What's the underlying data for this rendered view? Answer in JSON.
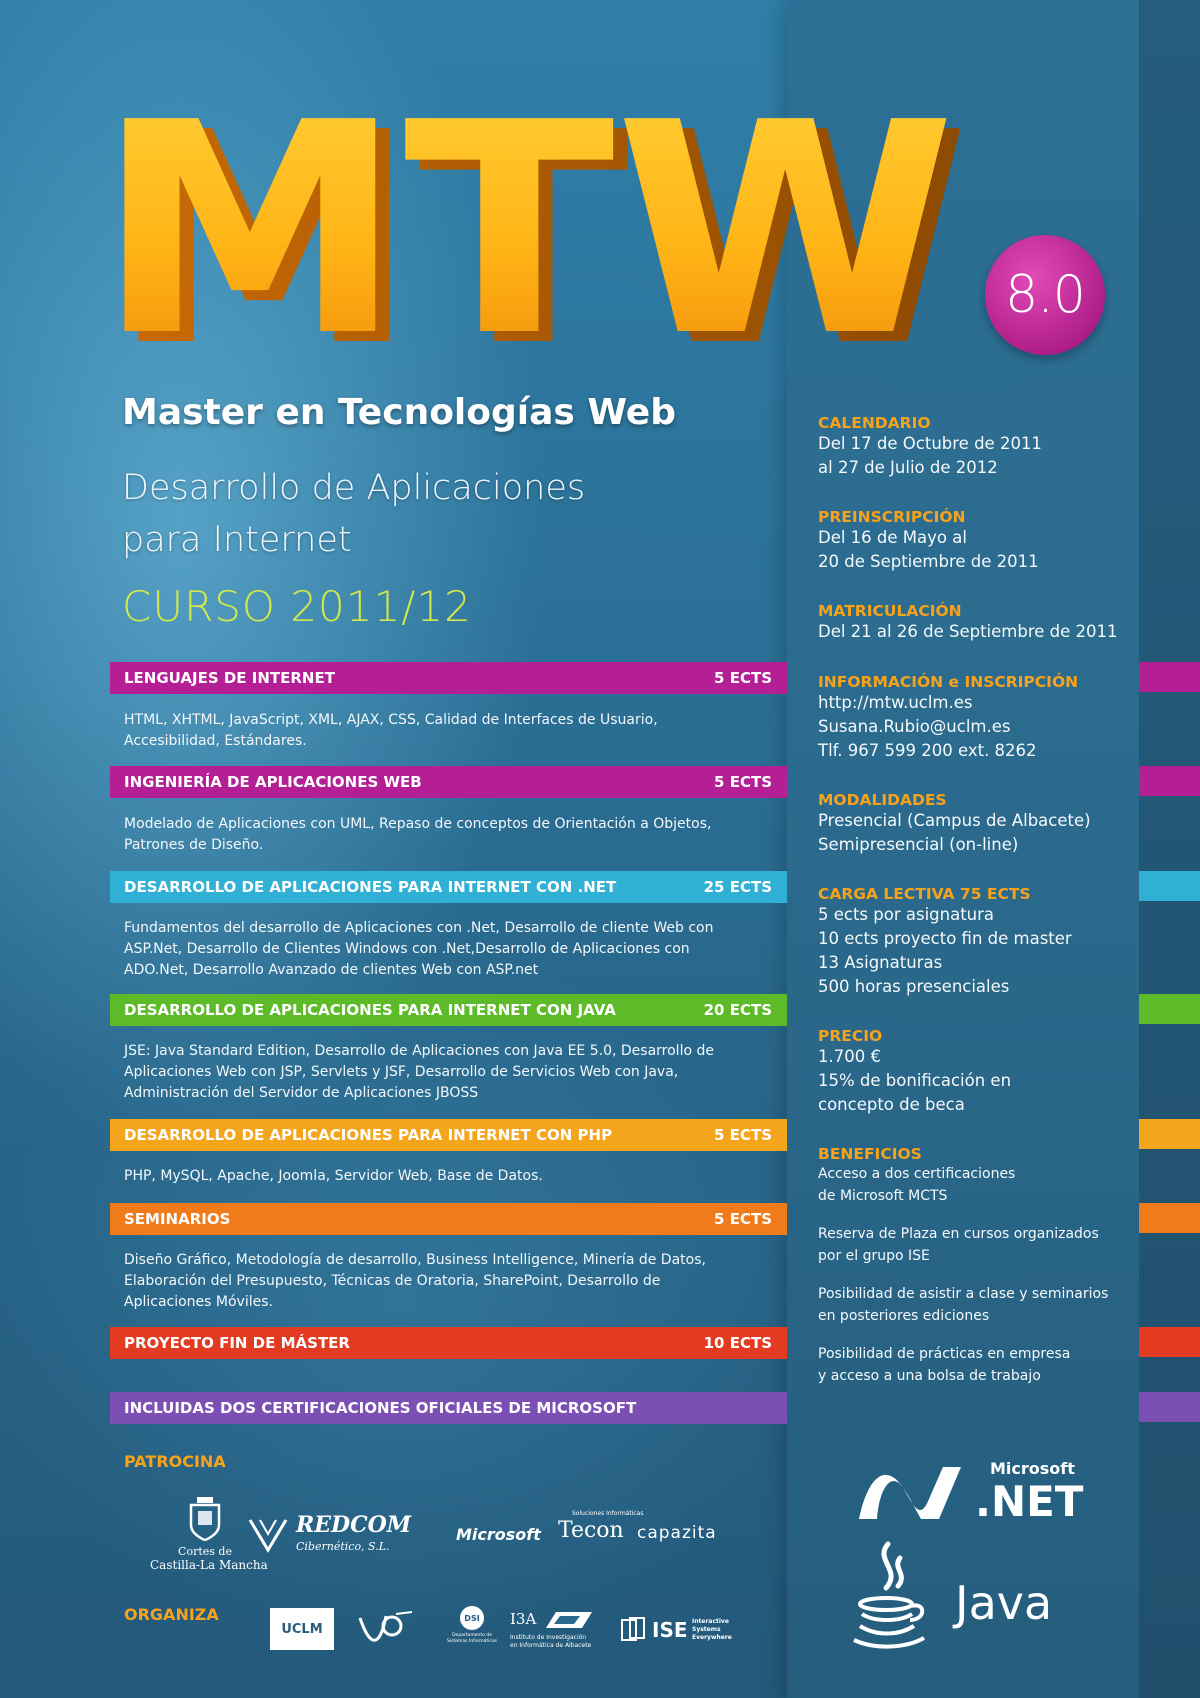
{
  "title": {
    "main": "MTW",
    "version": "8.0",
    "subtitle": "Master en Tecnologías Web",
    "tagline_line1": "Desarrollo de Aplicaciones",
    "tagline_line2": "para Internet",
    "course": "CURSO 2011/12"
  },
  "modules": [
    {
      "name": "LENGUAJES DE INTERNET",
      "ects": "5 ECTS",
      "color": "#b41f96",
      "lines": [
        "HTML, XHTML, JavaScript, XML, AJAX, CSS, Calidad de Interfaces de Usuario,",
        "Accesibilidad, Estándares."
      ]
    },
    {
      "name": "INGENIERÍA DE APLICACIONES WEB",
      "ects": "5 ECTS",
      "color": "#b41f96",
      "lines": [
        "Modelado de Aplicaciones con UML, Repaso de conceptos de Orientación a Objetos,",
        "Patrones de Diseño."
      ]
    },
    {
      "name": "DESARROLLO DE APLICACIONES PARA INTERNET CON .NET",
      "ects": "25 ECTS",
      "color": "#2fb0d4",
      "lines": [
        "Fundamentos del desarrollo de Aplicaciones con .Net, Desarrollo de cliente Web con",
        "ASP.Net, Desarrollo de Clientes Windows con .Net,Desarrollo de Aplicaciones con",
        "ADO.Net, Desarrollo Avanzado de clientes Web con ASP.net"
      ]
    },
    {
      "name": "DESARROLLO DE APLICACIONES PARA INTERNET CON JAVA",
      "ects": "20 ECTS",
      "color": "#5dbb2a",
      "lines": [
        "JSE: Java Standard Edition, Desarrollo de Aplicaciones con Java EE 5.0, Desarrollo de",
        "Aplicaciones Web con JSP, Servlets y JSF, Desarrollo de Servicios Web con Java,",
        "Administración del Servidor de Aplicaciones JBOSS"
      ]
    },
    {
      "name": "DESARROLLO DE APLICACIONES PARA INTERNET CON PHP",
      "ects": "5 ECTS",
      "color": "#f4a51c",
      "lines": [
        "PHP, MySQL, Apache, Joomla, Servidor Web, Base de Datos."
      ]
    },
    {
      "name": "SEMINARIOS",
      "ects": "5 ECTS",
      "color": "#f07b1a",
      "lines": [
        "Diseño Gráfico, Metodología de desarrollo, Business Intelligence, Minería de Datos,",
        "Elaboración del Presupuesto, Técnicas de Oratoria, SharePoint, Desarrollo de",
        "Aplicaciones Móviles."
      ]
    },
    {
      "name": "PROYECTO FIN DE MÁSTER",
      "ects": "10 ECTS",
      "color": "#e33a22",
      "lines": []
    },
    {
      "name": "INCLUIDAS DOS CERTIFICACIONES OFICIALES DE MICROSOFT",
      "ects": "",
      "color": "#7c4fb5",
      "lines": []
    }
  ],
  "info": [
    {
      "title": "CALENDARIO",
      "lines": [
        "Del 17 de Octubre de 2011",
        "al 27 de Julio de 2012"
      ]
    },
    {
      "title": "PREINSCRIPCIÓN",
      "lines": [
        "Del 16 de Mayo al",
        "20 de Septiembre de 2011"
      ]
    },
    {
      "title": "MATRICULACIÓN",
      "lines": [
        "Del 21 al 26 de Septiembre de 2011"
      ]
    },
    {
      "title": "INFORMACIÓN e INSCRIPCIÓN",
      "lines": [
        "http://mtw.uclm.es",
        "Susana.Rubio@uclm.es",
        "Tlf. 967 599 200 ext. 8262"
      ]
    },
    {
      "title": "MODALIDADES",
      "lines": [
        "Presencial (Campus de Albacete)",
        "Semipresencial (on-line)"
      ]
    },
    {
      "title": "CARGA LECTIVA 75 ECTS",
      "lines": [
        "5 ects por asignatura",
        "10 ects proyecto fin de master",
        "13 Asignaturas",
        "500 horas presenciales"
      ]
    },
    {
      "title": "PRECIO",
      "lines": [
        "1.700 €",
        "15% de bonificación en",
        "concepto de beca"
      ]
    }
  ],
  "benefits": {
    "title": "BENEFICIOS",
    "items": [
      [
        "Acceso a dos certificaciones",
        "de Microsoft MCTS"
      ],
      [
        "Reserva de Plaza en cursos organizados",
        "por el grupo ISE"
      ],
      [
        "Posibilidad de asistir a clase y seminarios",
        "en posteriores ediciones"
      ],
      [
        "Posibilidad de prácticas en empresa",
        "y acceso a una bolsa de trabajo"
      ]
    ]
  },
  "logos": {
    "patrocina_label": "PATROCINA",
    "organiza_label": "ORGANIZA",
    "cortes_line1": "Cortes de",
    "cortes_line2": "Castilla-La Mancha",
    "redcom": "REDCOM",
    "redcom_sub": "Cibernético, S.L.",
    "microsoft": "Microsoft",
    "tecon": "Tecon",
    "tecon_tag": "Soluciones Informáticas",
    "capazita": "capazita",
    "uclm": "UCLM",
    "dsi": "DSI",
    "dsi_sub": "Departamento de Sistemas Informáticos",
    "i3a": "I3A",
    "i3a_sub1": "Instituto de Investigación",
    "i3a_sub2": "en Informática de Albacete",
    "ise": "ISE",
    "ise_sub1": "Interactive",
    "ise_sub2": "Systems",
    "ise_sub3": "Everywhere",
    "ms_net_brand": "Microsoft",
    "ms_net_product": ".NET",
    "java": "Java"
  }
}
